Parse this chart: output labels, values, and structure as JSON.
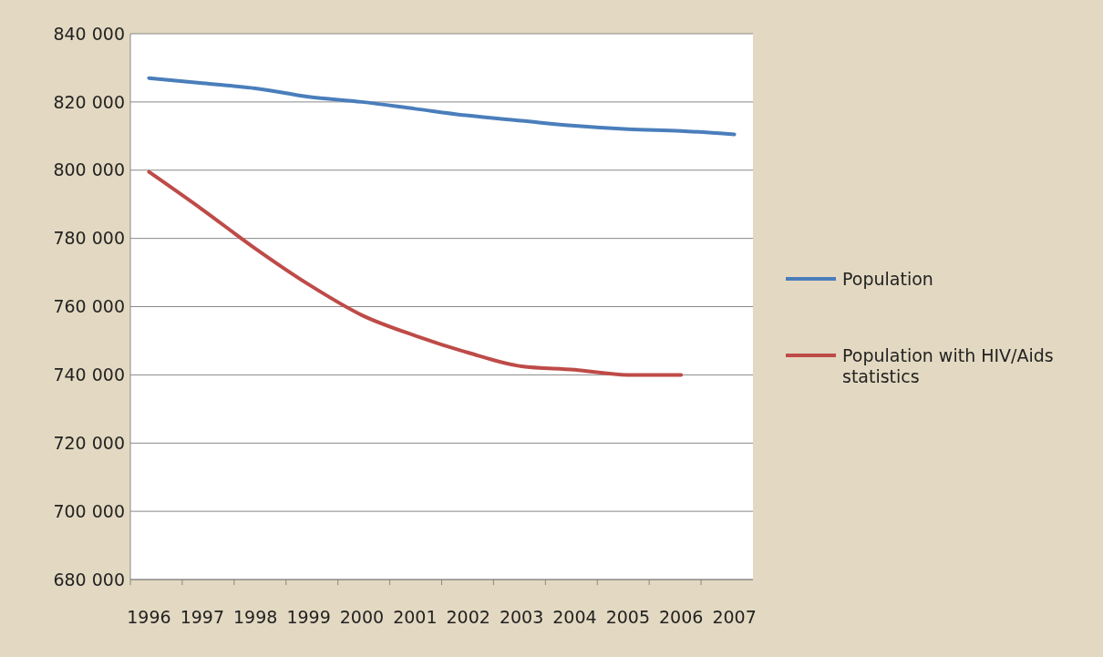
{
  "chart_data": {
    "type": "line",
    "categories": [
      "1996",
      "1997",
      "1998",
      "1999",
      "2000",
      "2001",
      "2002",
      "2003",
      "2004",
      "2005",
      "2006",
      "2007"
    ],
    "series": [
      {
        "name": "Population",
        "color": "#4a7ebb",
        "values": [
          827000,
          825500,
          824000,
          821500,
          820000,
          818000,
          816000,
          814500,
          813000,
          812000,
          811500,
          810500
        ]
      },
      {
        "name": "Population with HIV/Aids statistics",
        "color": "#be4b48",
        "values": [
          799500,
          788500,
          777000,
          766500,
          757500,
          751500,
          746500,
          742500,
          741500,
          740000,
          740000,
          null
        ]
      }
    ],
    "ylim": [
      680000,
      840000
    ],
    "yticks": [
      {
        "value": 680000,
        "label": "680 000"
      },
      {
        "value": 700000,
        "label": "700 000"
      },
      {
        "value": 720000,
        "label": "720 000"
      },
      {
        "value": 740000,
        "label": "740 000"
      },
      {
        "value": 760000,
        "label": "760 000"
      },
      {
        "value": 780000,
        "label": "780 000"
      },
      {
        "value": 800000,
        "label": "800 000"
      },
      {
        "value": 820000,
        "label": "820 000"
      },
      {
        "value": 840000,
        "label": "840 000"
      }
    ],
    "grid": "y",
    "legend": "right",
    "marker": "none",
    "line_style": "solid"
  }
}
